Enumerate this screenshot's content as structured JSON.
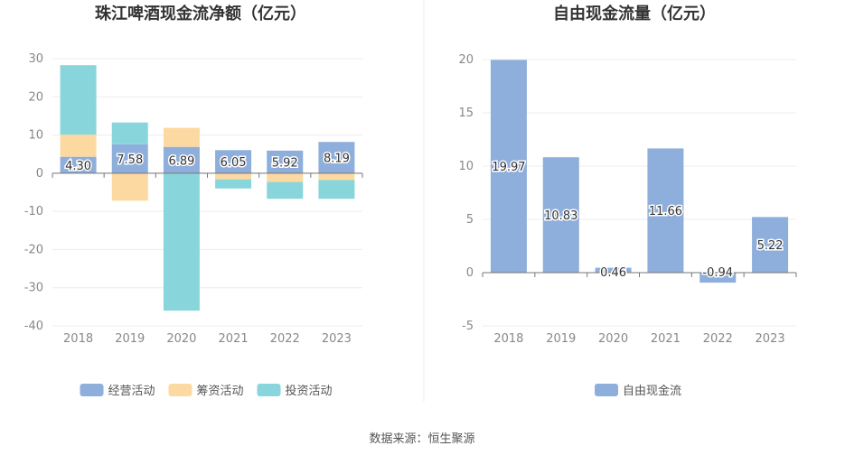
{
  "chart_data": [
    {
      "type": "bar",
      "stacked": true,
      "title": "珠江啤酒现金流净额（亿元）",
      "categories": [
        "2018",
        "2019",
        "2020",
        "2021",
        "2022",
        "2023"
      ],
      "ylim": [
        -40,
        30
      ],
      "yticks": [
        30,
        20,
        10,
        0,
        -10,
        -20,
        -30,
        -40
      ],
      "grid": true,
      "legend": "bottom",
      "series": [
        {
          "name": "经营活动",
          "color": "#8eaedb",
          "values": [
            4.3,
            7.58,
            6.89,
            6.05,
            5.92,
            8.19
          ],
          "labels": [
            "4.30",
            "7.58",
            "6.89",
            "6.05",
            "5.92",
            "8.19"
          ]
        },
        {
          "name": "筹资活动",
          "color": "#fcd9a1",
          "values": [
            5.8,
            -7.2,
            5.0,
            -1.6,
            -2.3,
            -1.8
          ]
        },
        {
          "name": "投资活动",
          "color": "#88d6db",
          "values": [
            18.2,
            5.7,
            -36.0,
            -2.4,
            -4.4,
            -4.9
          ]
        }
      ]
    },
    {
      "type": "bar",
      "title": "自由现金流量（亿元）",
      "categories": [
        "2018",
        "2019",
        "2020",
        "2021",
        "2022",
        "2023"
      ],
      "ylim": [
        -5,
        20
      ],
      "yticks": [
        20,
        15,
        10,
        5,
        0,
        -5
      ],
      "grid": true,
      "legend": "bottom",
      "series": [
        {
          "name": "自由现金流",
          "color": "#8eaedb",
          "values": [
            19.97,
            10.83,
            0.46,
            11.66,
            -0.94,
            5.22
          ],
          "labels": [
            "19.97",
            "10.83",
            "0.46",
            "11.66",
            "-0.94",
            "5.22"
          ]
        }
      ]
    }
  ],
  "source": "数据来源：恒生聚源"
}
